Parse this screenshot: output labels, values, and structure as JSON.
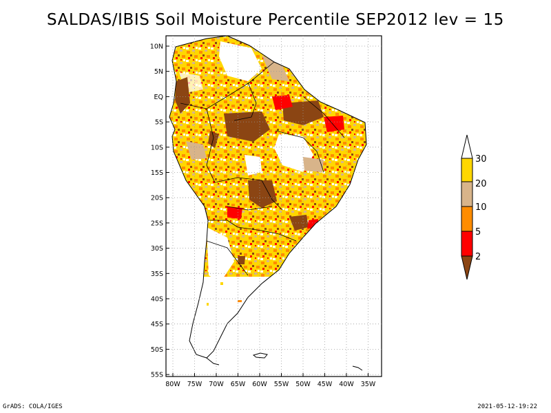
{
  "title": "SALDAS/IBIS Soil Moisture Percentile SEP2012 lev = 15",
  "map": {
    "lat_labels": [
      "10N",
      "5N",
      "EQ",
      "5S",
      "10S",
      "15S",
      "20S",
      "25S",
      "30S",
      "35S",
      "40S",
      "45S",
      "50S",
      "55S"
    ],
    "lon_labels": [
      "80W",
      "75W",
      "70W",
      "65W",
      "60W",
      "55W",
      "50W",
      "45W",
      "40W",
      "35W"
    ],
    "grid": "dotted"
  },
  "legend": {
    "labels": [
      "30",
      "20",
      "10",
      "5",
      "2"
    ],
    "colors": {
      "above_30": "#ffffff",
      "20_30": "#ffd700",
      "10_20": "#d8b48a",
      "5_10": "#ff8c00",
      "2_5": "#ff0000",
      "below_2": "#8b4513"
    }
  },
  "footer": {
    "left": "GrADS: COLA/IGES",
    "right": "2021-05-12-19:22"
  }
}
